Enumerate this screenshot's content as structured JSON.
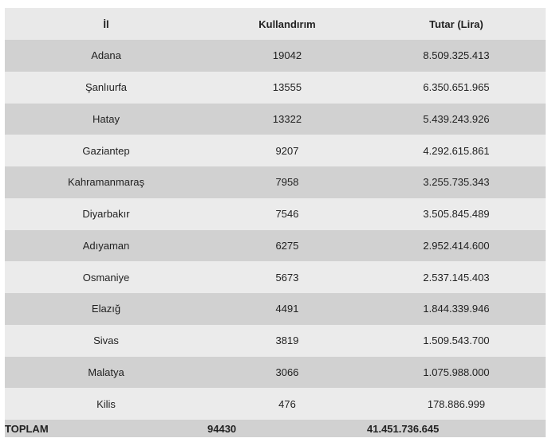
{
  "table": {
    "header": [
      "İl",
      "Kullandırım",
      "Tutar (Lira)"
    ],
    "rows": [
      [
        "Adana",
        "19042",
        "8.509.325.413"
      ],
      [
        "Şanlıurfa",
        "13555",
        "6.350.651.965"
      ],
      [
        "Hatay",
        "13322",
        "5.439.243.926"
      ],
      [
        "Gaziantep",
        "9207",
        "4.292.615.861"
      ],
      [
        "Kahramanmaraş",
        "7958",
        "3.255.735.343"
      ],
      [
        "Diyarbakır",
        "7546",
        "3.505.845.489"
      ],
      [
        "Adıyaman",
        "6275",
        "2.952.414.600"
      ],
      [
        "Osmaniye",
        "5673",
        "2.537.145.403"
      ],
      [
        "Elazığ",
        "4491",
        "1.844.339.946"
      ],
      [
        "Sivas",
        "3819",
        "1.509.543.700"
      ],
      [
        "Malatya",
        "3066",
        "1.075.988.000"
      ],
      [
        "Kilis",
        "476",
        "178.886.999"
      ]
    ],
    "footer": [
      "TOPLAM",
      "94430",
      "41.451.736.645"
    ]
  }
}
